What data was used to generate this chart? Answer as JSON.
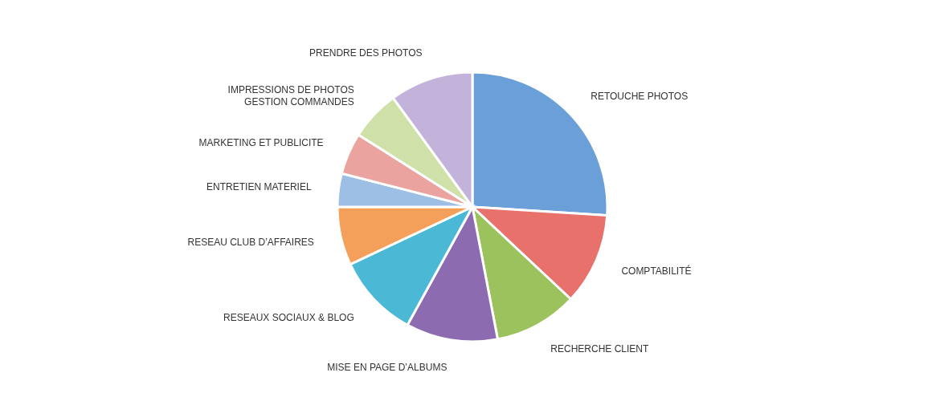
{
  "chart_data": {
    "type": "pie",
    "categories": [
      "RETOUCHE PHOTOS",
      "COMPTABILITÉ",
      "RECHERCHE CLIENT",
      "MISE EN PAGE D’ALBUMS",
      "RESEAUX SOCIAUX & BLOG",
      "RESEAU CLUB D’AFFAIRES",
      "ENTRETIEN MATERIEL",
      "MARKETING ET PUBLICITE",
      "IMPRESSIONS DE PHOTOS\nGESTION COMMANDES",
      "PRENDRE DES PHOTOS"
    ],
    "values": [
      26,
      11,
      10,
      11,
      10,
      7,
      4,
      5,
      6,
      10
    ],
    "colors": [
      "#6a9fd8",
      "#e8716b",
      "#9bc25d",
      "#8c6bb1",
      "#4bb8d6",
      "#f5a05a",
      "#9dbfe6",
      "#eba3a0",
      "#cfe0a8",
      "#c3b3da"
    ]
  }
}
